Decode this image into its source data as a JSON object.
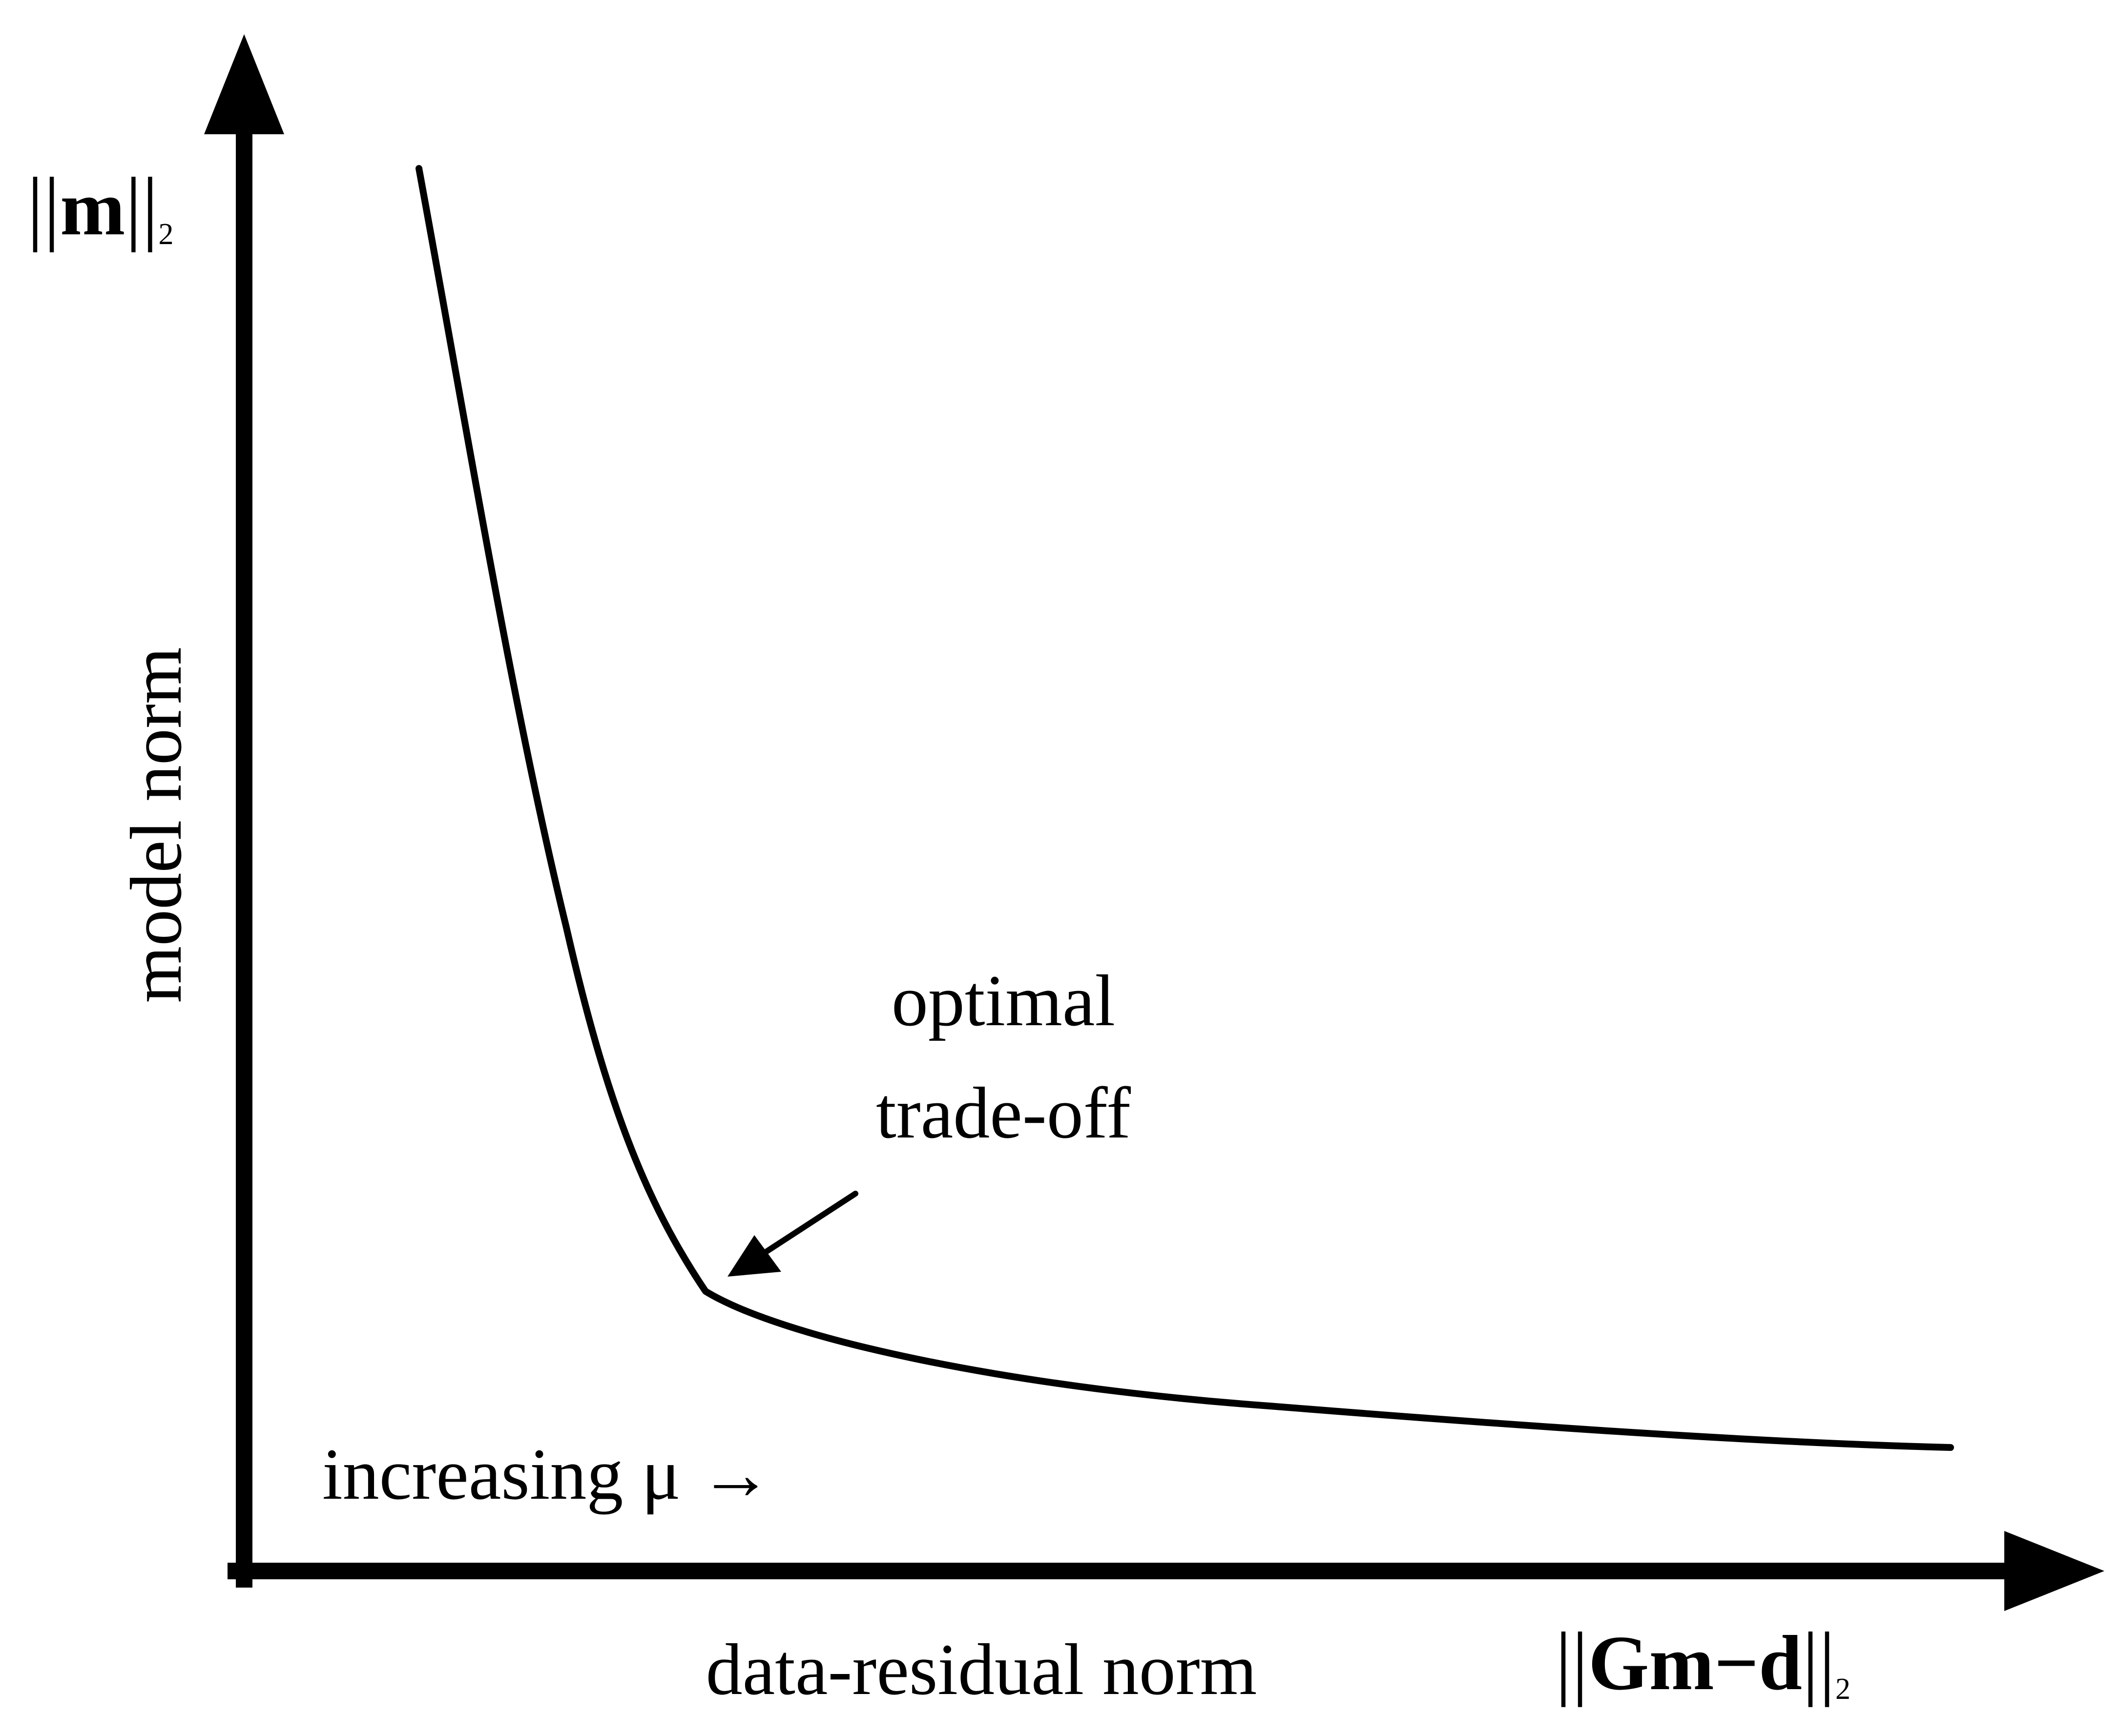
{
  "diagram": {
    "y_axis_label": "model norm",
    "x_axis_label": "data-residual norm",
    "y_axis_symbol": {
      "left_bars": "||",
      "bold": "m",
      "right_bars": "||",
      "subscript": "2"
    },
    "x_axis_symbol": {
      "left_bars": "||",
      "bold": "Gm−d",
      "right_bars": "||",
      "subscript": "2"
    },
    "annotation": {
      "line1": "optimal",
      "line2": "trade-off"
    },
    "direction_label": "increasing μ →"
  },
  "colors": {
    "ink": "#000000",
    "background": "#ffffff"
  }
}
